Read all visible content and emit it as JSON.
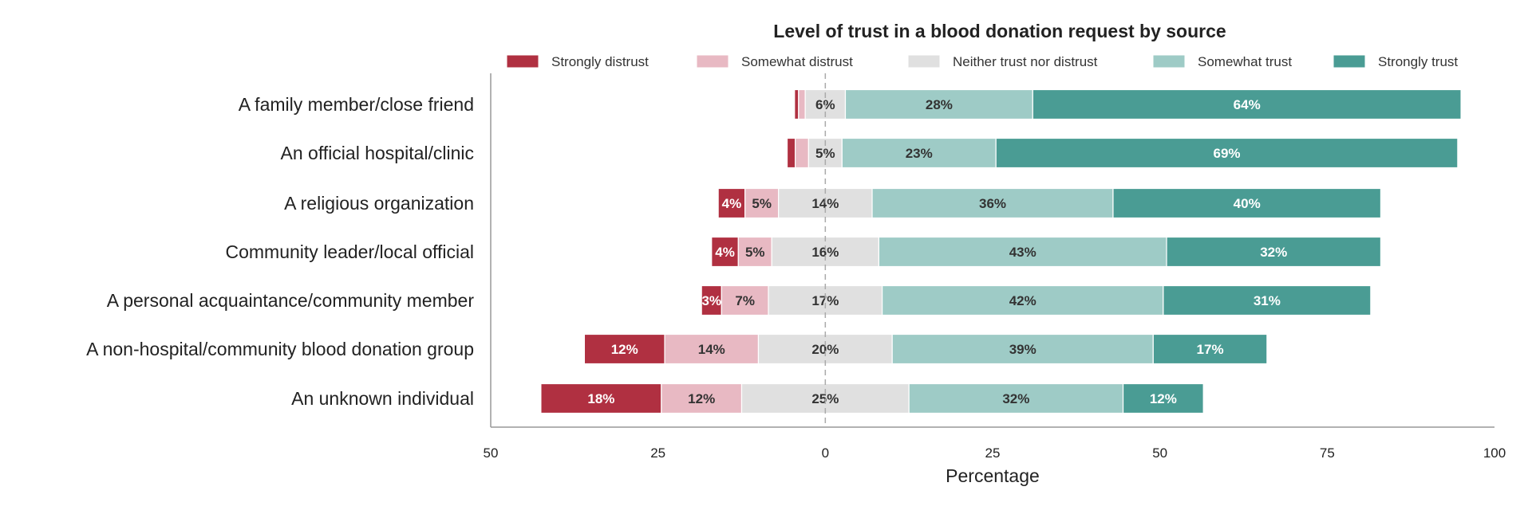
{
  "chart_data": {
    "type": "bar",
    "orientation": "horizontal",
    "stacking": "diverging",
    "title": "Level of trust in a blood donation request by source",
    "xlabel": "Percentage",
    "ylabel": "",
    "xlim": [
      -50,
      100
    ],
    "xticks": [
      -50,
      -25,
      0,
      25,
      50,
      75,
      100
    ],
    "xtick_labels": [
      "50",
      "25",
      "0",
      "25",
      "50",
      "75",
      "100"
    ],
    "grid": false,
    "legend_position": "top",
    "zero_line": "dashed",
    "categories": [
      "A family member/close friend",
      "An official hospital/clinic",
      "A religious organization",
      "Community leader/local official",
      "A personal acquaintance/community member",
      "A non-hospital/community blood donation group",
      "An unknown individual"
    ],
    "series": [
      {
        "name": "Strongly distrust",
        "color": "#b03041",
        "values": [
          0.6,
          1.2,
          4,
          4,
          3,
          12,
          18
        ]
      },
      {
        "name": "Somewhat distrust",
        "color": "#e8b9c3",
        "values": [
          1,
          2,
          5,
          5,
          7,
          14,
          12
        ]
      },
      {
        "name": "Neither trust nor distrust",
        "color": "#e0e0e0",
        "values": [
          6,
          5,
          14,
          16,
          17,
          20,
          25
        ]
      },
      {
        "name": "Somewhat trust",
        "color": "#9ecbc6",
        "values": [
          28,
          23,
          36,
          43,
          42,
          39,
          32
        ]
      },
      {
        "name": "Strongly trust",
        "color": "#4a9c94",
        "values": [
          64,
          69,
          40,
          32,
          31,
          17,
          12
        ]
      }
    ]
  }
}
